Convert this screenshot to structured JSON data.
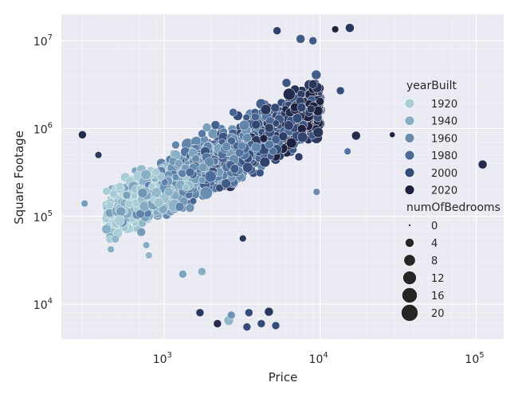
{
  "chart_data": {
    "type": "scatter",
    "title": "",
    "xlabel": "Price",
    "ylabel": "Square Footage",
    "x_scale": "log",
    "y_scale": "log",
    "xlim": [
      220,
      150000
    ],
    "ylim": [
      4000,
      20000000
    ],
    "x_ticks": [
      {
        "value": 1000,
        "base": "10",
        "exp": "3"
      },
      {
        "value": 10000,
        "base": "10",
        "exp": "4"
      },
      {
        "value": 100000,
        "base": "10",
        "exp": "5"
      }
    ],
    "y_ticks": [
      {
        "value": 10000,
        "base": "10",
        "exp": "4"
      },
      {
        "value": 100000,
        "base": "10",
        "exp": "5"
      },
      {
        "value": 1000000,
        "base": "10",
        "exp": "6"
      },
      {
        "value": 10000000,
        "base": "10",
        "exp": "7"
      }
    ],
    "grid": true,
    "background": "#eaeaf2",
    "legend_position": "right",
    "hue": {
      "title": "yearBuilt",
      "entries": [
        {
          "label": "1920",
          "value": 1920,
          "color": "#a9cdd6"
        },
        {
          "label": "1940",
          "value": 1940,
          "color": "#86adc4"
        },
        {
          "label": "1960",
          "value": 1960,
          "color": "#678cb0"
        },
        {
          "label": "1980",
          "value": 1980,
          "color": "#4d6b9a"
        },
        {
          "label": "2000",
          "value": 2000,
          "color": "#354b78"
        },
        {
          "label": "2020",
          "value": 2020,
          "color": "#1e2240"
        }
      ]
    },
    "size": {
      "title": "numOfBedrooms",
      "entries": [
        {
          "label": "0",
          "value": 0
        },
        {
          "label": "4",
          "value": 4
        },
        {
          "label": "8",
          "value": 8
        },
        {
          "label": "12",
          "value": 12
        },
        {
          "label": "16",
          "value": 16
        },
        {
          "label": "20",
          "value": 20
        }
      ]
    },
    "points": [
      {
        "x": 300,
        "y": 850000,
        "year": 2015,
        "beds": 3
      },
      {
        "x": 310,
        "y": 140000,
        "year": 1950,
        "beds": 2
      },
      {
        "x": 380,
        "y": 500000,
        "year": 2010,
        "beds": 2
      },
      {
        "x": 1700,
        "y": 8000,
        "year": 2010,
        "beds": 3
      },
      {
        "x": 2200,
        "y": 6000,
        "year": 2015,
        "beds": 3
      },
      {
        "x": 2600,
        "y": 6500,
        "year": 1935,
        "beds": 5
      },
      {
        "x": 2700,
        "y": 7500,
        "year": 1955,
        "beds": 3
      },
      {
        "x": 3400,
        "y": 5500,
        "year": 2000,
        "beds": 3
      },
      {
        "x": 3500,
        "y": 8000,
        "year": 2000,
        "beds": 3
      },
      {
        "x": 4200,
        "y": 6000,
        "year": 2000,
        "beds": 3
      },
      {
        "x": 4700,
        "y": 8200,
        "year": 2010,
        "beds": 4
      },
      {
        "x": 5200,
        "y": 5700,
        "year": 2000,
        "beds": 3
      },
      {
        "x": 1320,
        "y": 22000,
        "year": 1945,
        "beds": 3
      },
      {
        "x": 1750,
        "y": 23500,
        "year": 1940,
        "beds": 3
      },
      {
        "x": 770,
        "y": 47000,
        "year": 1940,
        "beds": 2
      },
      {
        "x": 800,
        "y": 36000,
        "year": 1935,
        "beds": 2
      },
      {
        "x": 3200,
        "y": 56000,
        "year": 2010,
        "beds": 2
      },
      {
        "x": 5300,
        "y": 13000000,
        "year": 2005,
        "beds": 3
      },
      {
        "x": 12500,
        "y": 13500000,
        "year": 2020,
        "beds": 2
      },
      {
        "x": 15500,
        "y": 14000000,
        "year": 2010,
        "beds": 4
      },
      {
        "x": 7500,
        "y": 10500000,
        "year": 1990,
        "beds": 4
      },
      {
        "x": 9000,
        "y": 10000000,
        "year": 1990,
        "beds": 3
      },
      {
        "x": 17000,
        "y": 830000,
        "year": 2015,
        "beds": 4
      },
      {
        "x": 29000,
        "y": 850000,
        "year": 2020,
        "beds": 1
      },
      {
        "x": 15000,
        "y": 550000,
        "year": 1975,
        "beds": 2
      },
      {
        "x": 9500,
        "y": 190000,
        "year": 1960,
        "beds": 2
      },
      {
        "x": 110000,
        "y": 390000,
        "year": 2015,
        "beds": 4
      },
      {
        "x": 13500,
        "y": 2700000,
        "year": 2000,
        "beds": 3
      },
      {
        "x": 9000,
        "y": 3200000,
        "year": 2010,
        "beds": 4
      }
    ],
    "cloud": {
      "n": 2100,
      "seed": 7,
      "logx_min": 2.63,
      "logx_max": 4.0,
      "logy_intercept": 2.7,
      "logy_slope": 0.88,
      "logy_sd": 0.27
    }
  },
  "icons": {
    "size_marker": "filled-circle"
  }
}
